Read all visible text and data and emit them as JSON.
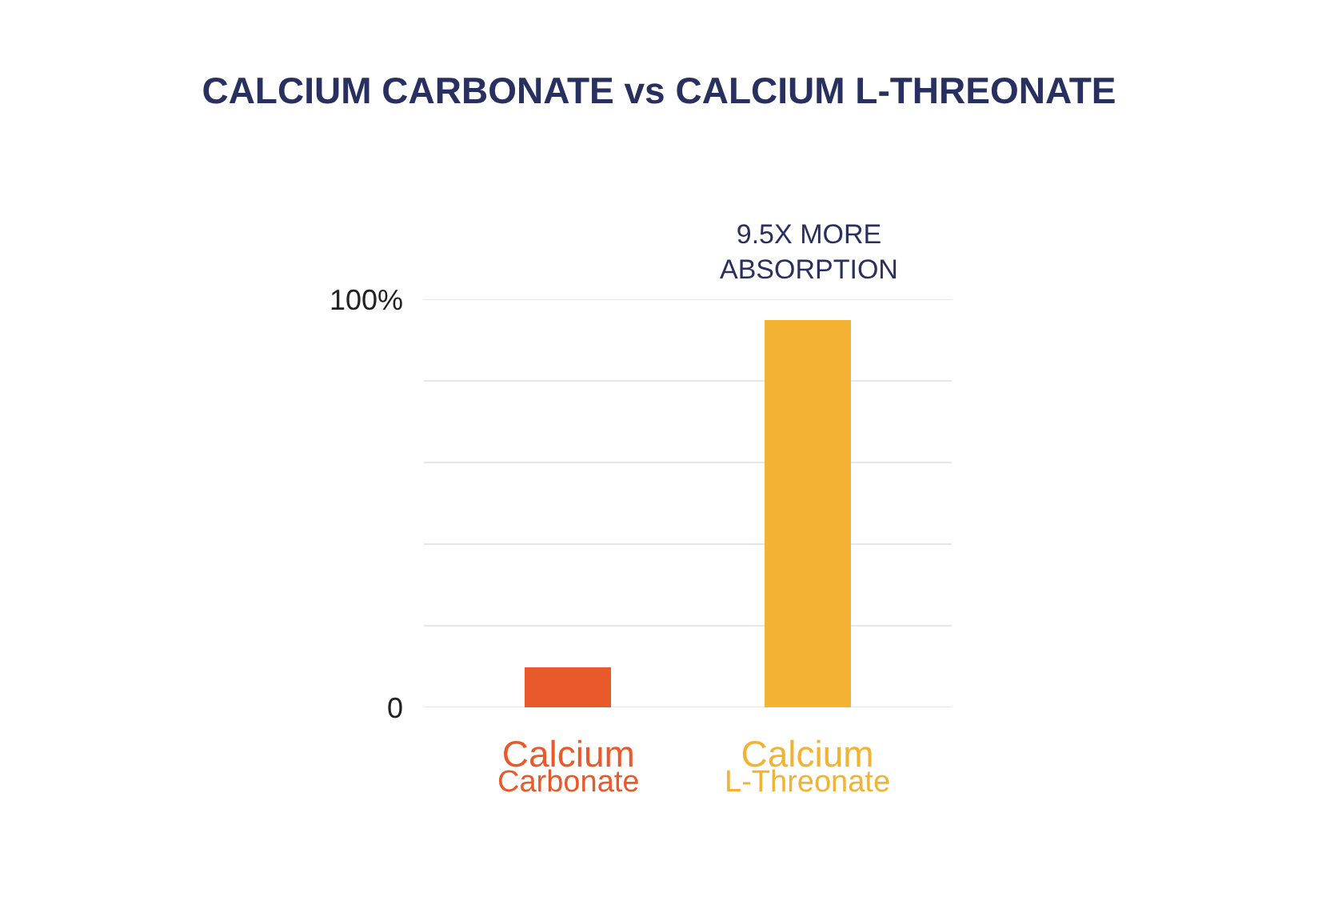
{
  "chart_data": {
    "type": "bar",
    "title": "CALCIUM CARBONATE vs CALCIUM L-THREONATE",
    "categories": [
      "Calcium Carbonate",
      "Calcium L-Threonate"
    ],
    "values": [
      10,
      95
    ],
    "colors": [
      "#e85a2b",
      "#f3b234"
    ],
    "ylim": [
      0,
      100
    ],
    "yticks": [
      0,
      {
        "value": 20,
        "label": null
      },
      {
        "value": 40,
        "label": null
      },
      {
        "value": 60,
        "label": null
      },
      {
        "value": 80,
        "label": null
      },
      {
        "value": 100,
        "label": "100%"
      }
    ],
    "grid": "y",
    "legend": false,
    "annotations": [
      {
        "text": "9.5X MORE ABSORPTION",
        "x": "Calcium L-Threonate",
        "y": 95
      }
    ]
  }
}
